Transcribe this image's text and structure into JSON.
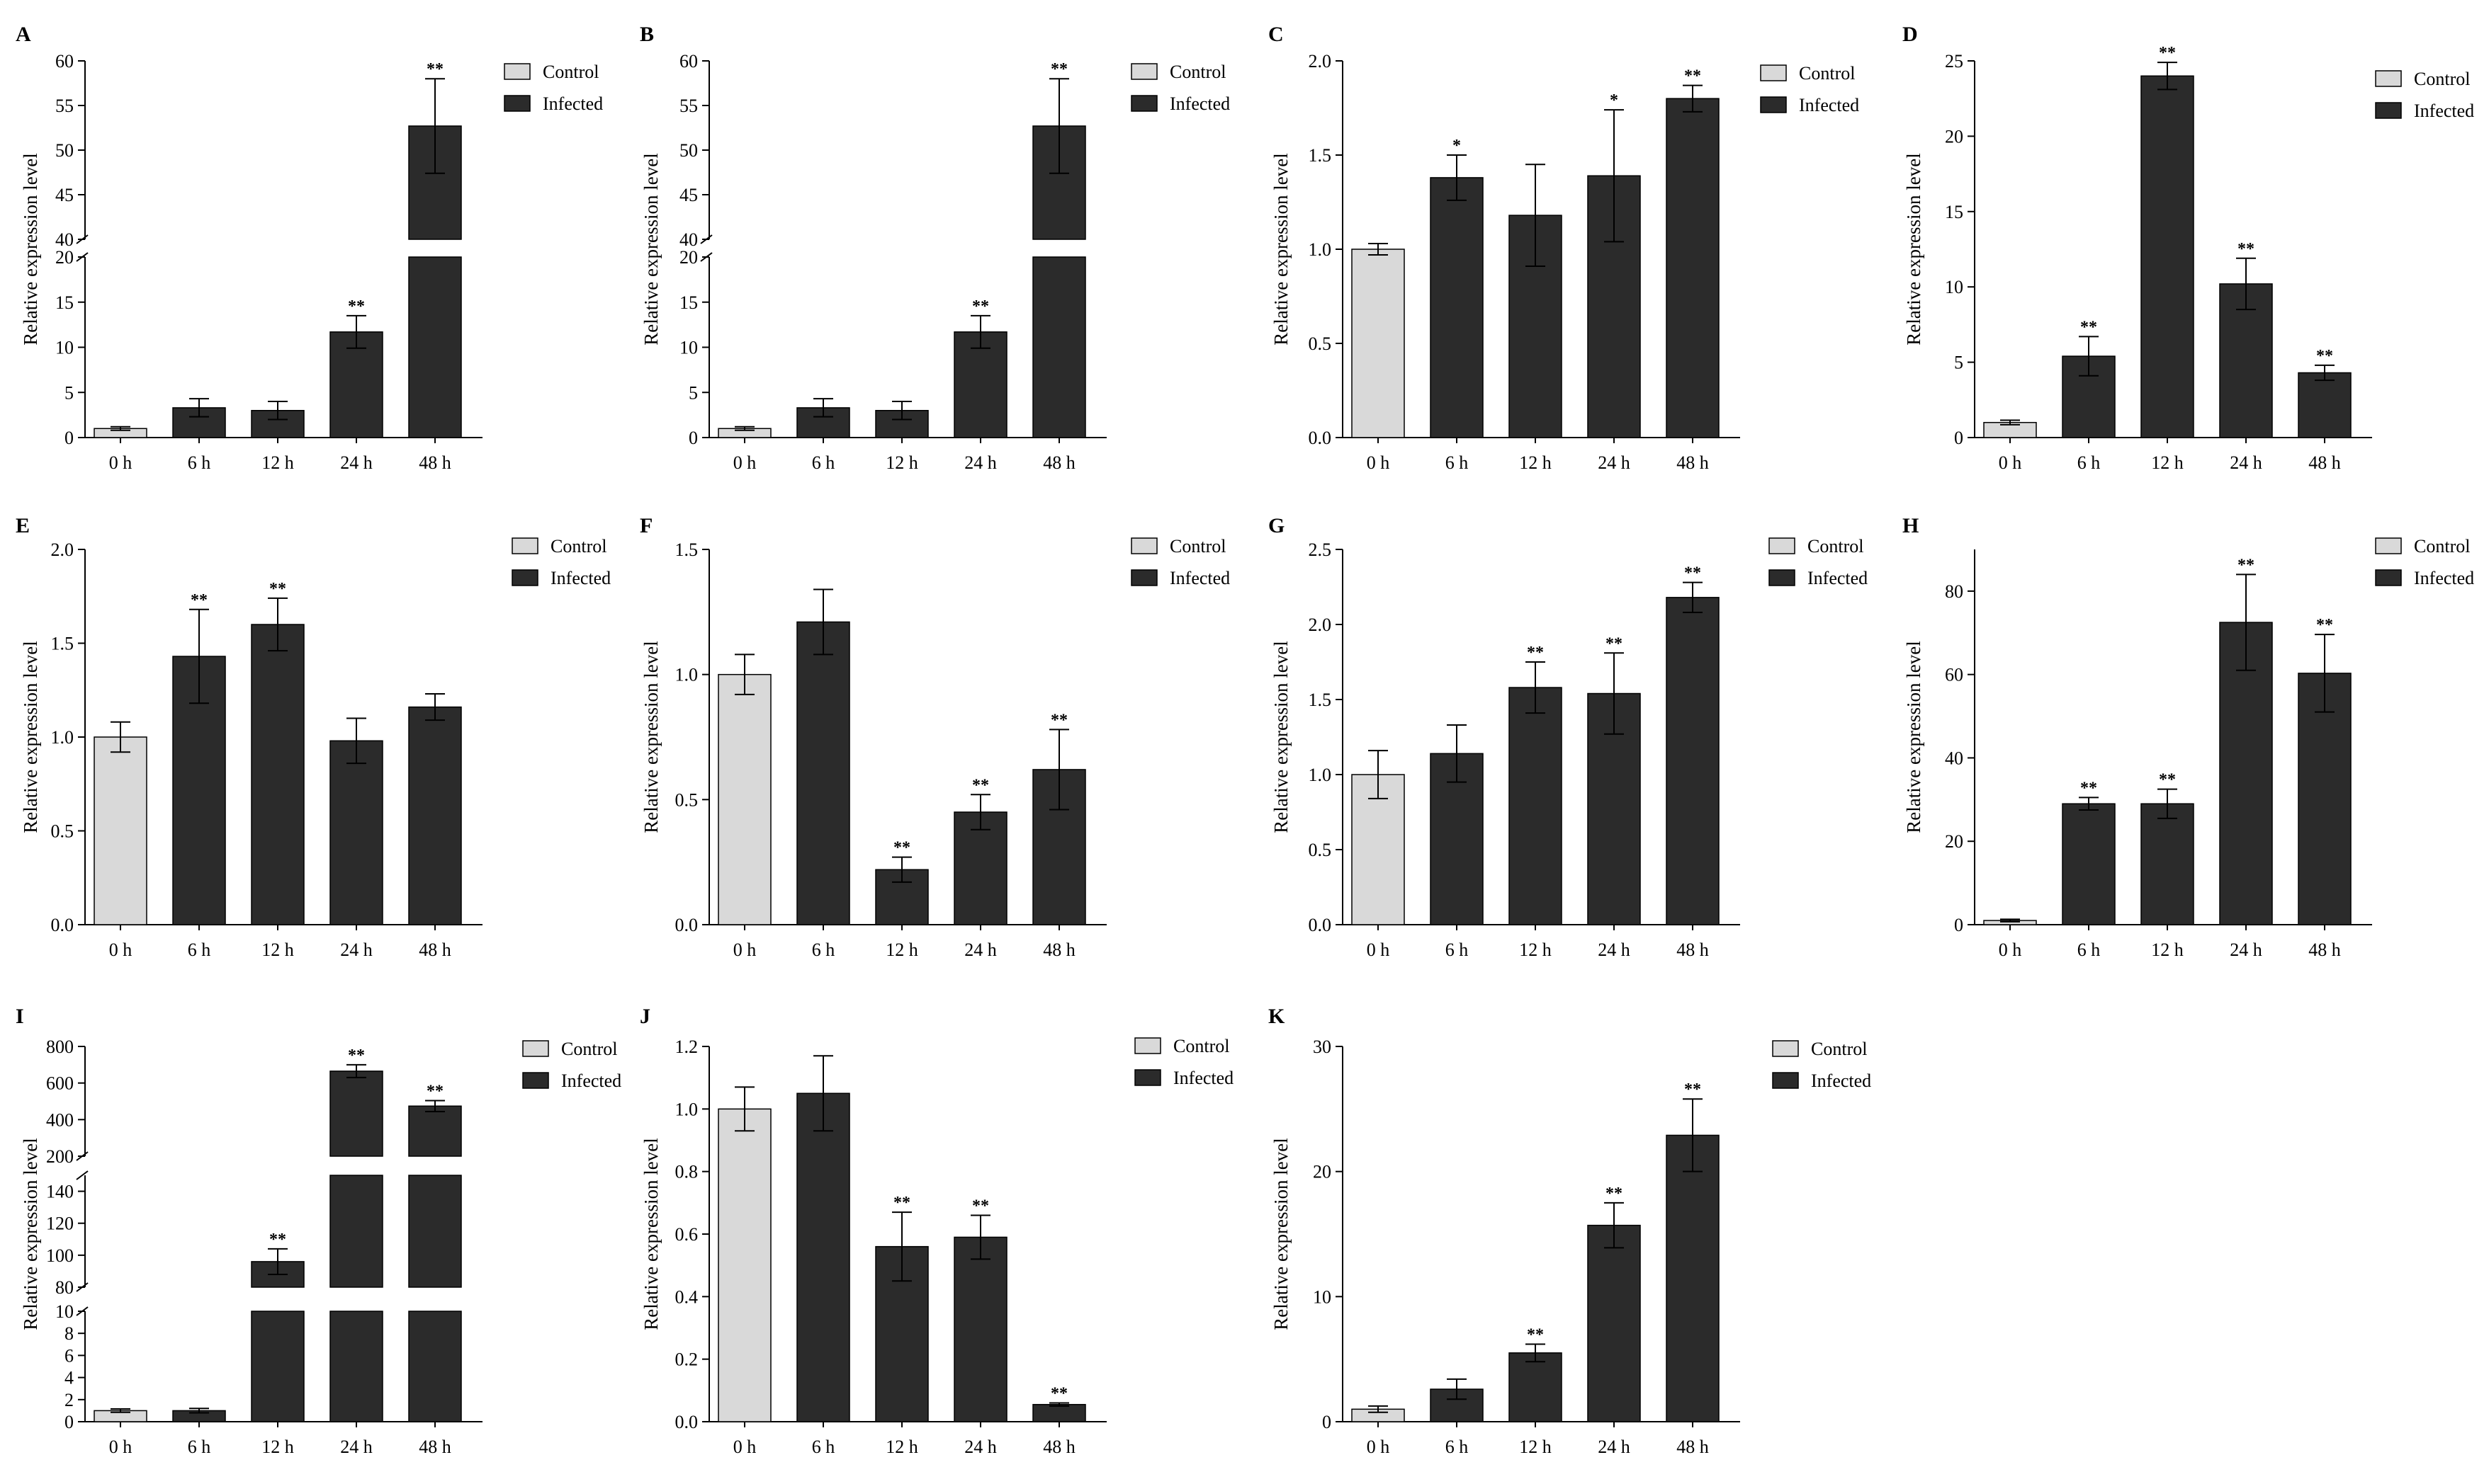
{
  "colors": {
    "control": "#d9d9d9",
    "infected": "#2b2b2b",
    "axis": "#000000"
  },
  "chart_data": [
    {
      "label": "A",
      "type": "bar",
      "categories": [
        "0 h",
        "6 h",
        "12 h",
        "24 h",
        "48 h"
      ],
      "values": [
        1.0,
        3.3,
        3.0,
        11.7,
        52.7
      ],
      "errors": [
        0.2,
        1.0,
        1.0,
        1.8,
        5.3
      ],
      "sig": [
        "",
        "",
        "",
        "**",
        "**"
      ],
      "groups": [
        "Control",
        "Infected",
        "Infected",
        "Infected",
        "Infected"
      ],
      "ylabel": "Relative expression level",
      "ysegments": [
        {
          "min": 0,
          "max": 20,
          "ticks": [
            0,
            5,
            10,
            15,
            20
          ]
        },
        {
          "min": 40,
          "max": 60,
          "ticks": [
            40,
            45,
            50,
            55,
            60
          ]
        }
      ],
      "legend": [
        "Control",
        "Infected"
      ]
    },
    {
      "label": "B",
      "type": "bar",
      "categories": [
        "0 h",
        "6 h",
        "12 h",
        "24 h",
        "48 h"
      ],
      "values": [
        1.0,
        3.3,
        3.0,
        11.7,
        52.7
      ],
      "errors": [
        0.2,
        1.0,
        1.0,
        1.8,
        5.3
      ],
      "sig": [
        "",
        "",
        "",
        "**",
        "**"
      ],
      "groups": [
        "Control",
        "Infected",
        "Infected",
        "Infected",
        "Infected"
      ],
      "ylabel": "Relative expression level",
      "ysegments": [
        {
          "min": 0,
          "max": 20,
          "ticks": [
            0,
            5,
            10,
            15,
            20
          ]
        },
        {
          "min": 40,
          "max": 60,
          "ticks": [
            40,
            45,
            50,
            55,
            60
          ]
        }
      ],
      "legend": [
        "Control",
        "Infected"
      ]
    },
    {
      "label": "C",
      "type": "bar",
      "categories": [
        "0 h",
        "6 h",
        "12 h",
        "24 h",
        "48 h"
      ],
      "values": [
        1.0,
        1.38,
        1.18,
        1.39,
        1.8
      ],
      "errors": [
        0.03,
        0.12,
        0.27,
        0.35,
        0.07
      ],
      "sig": [
        "",
        "*",
        "",
        "*",
        "**"
      ],
      "groups": [
        "Control",
        "Infected",
        "Infected",
        "Infected",
        "Infected"
      ],
      "ylabel": "Relative expression level",
      "ysegments": [
        {
          "min": 0,
          "max": 2.0,
          "ticks": [
            "0.0",
            "0.5",
            "1.0",
            "1.5",
            "2.0"
          ]
        }
      ],
      "legend": [
        "Control",
        "Infected"
      ]
    },
    {
      "label": "D",
      "type": "bar",
      "categories": [
        "0 h",
        "6 h",
        "12 h",
        "24 h",
        "48 h"
      ],
      "values": [
        1.0,
        5.4,
        24.0,
        10.2,
        4.3
      ],
      "errors": [
        0.15,
        1.3,
        0.9,
        1.7,
        0.5
      ],
      "sig": [
        "",
        "**",
        "**",
        "**",
        "**"
      ],
      "groups": [
        "Control",
        "Infected",
        "Infected",
        "Infected",
        "Infected"
      ],
      "ylabel": "Relative expression level",
      "ysegments": [
        {
          "min": 0,
          "max": 25,
          "ticks": [
            0,
            5,
            10,
            15,
            20,
            25
          ]
        }
      ],
      "legend": [
        "Control",
        "Infected"
      ]
    },
    {
      "label": "E",
      "type": "bar",
      "categories": [
        "0 h",
        "6 h",
        "12 h",
        "24 h",
        "48 h"
      ],
      "values": [
        1.0,
        1.43,
        1.6,
        0.98,
        1.16
      ],
      "errors": [
        0.08,
        0.25,
        0.14,
        0.12,
        0.07
      ],
      "sig": [
        "",
        "**",
        "**",
        "",
        ""
      ],
      "groups": [
        "Control",
        "Infected",
        "Infected",
        "Infected",
        "Infected"
      ],
      "ylabel": "Relative expression level",
      "ysegments": [
        {
          "min": 0,
          "max": 2.0,
          "ticks": [
            "0.0",
            "0.5",
            "1.0",
            "1.5",
            "2.0"
          ]
        }
      ],
      "legend": [
        "Control",
        "Infected"
      ]
    },
    {
      "label": "F",
      "type": "bar",
      "categories": [
        "0 h",
        "6 h",
        "12 h",
        "24 h",
        "48 h"
      ],
      "values": [
        1.0,
        1.21,
        0.22,
        0.45,
        0.62
      ],
      "errors": [
        0.08,
        0.13,
        0.05,
        0.07,
        0.16
      ],
      "sig": [
        "",
        "",
        "**",
        "**",
        "**"
      ],
      "groups": [
        "Control",
        "Infected",
        "Infected",
        "Infected",
        "Infected"
      ],
      "ylabel": "Relative expression level",
      "ysegments": [
        {
          "min": 0,
          "max": 1.5,
          "ticks": [
            "0.0",
            "0.5",
            "1.0",
            "1.5"
          ]
        }
      ],
      "legend": [
        "Control",
        "Infected"
      ]
    },
    {
      "label": "G",
      "type": "bar",
      "categories": [
        "0 h",
        "6 h",
        "12 h",
        "24 h",
        "48 h"
      ],
      "values": [
        1.0,
        1.14,
        1.58,
        1.54,
        2.18
      ],
      "errors": [
        0.16,
        0.19,
        0.17,
        0.27,
        0.1
      ],
      "sig": [
        "",
        "",
        "**",
        "**",
        "**"
      ],
      "groups": [
        "Control",
        "Infected",
        "Infected",
        "Infected",
        "Infected"
      ],
      "ylabel": "Relative expression level",
      "ysegments": [
        {
          "min": 0,
          "max": 2.5,
          "ticks": [
            "0.0",
            "0.5",
            "1.0",
            "1.5",
            "2.0",
            "2.5"
          ]
        }
      ],
      "legend": [
        "Control",
        "Infected"
      ]
    },
    {
      "label": "H",
      "type": "bar",
      "categories": [
        "0 h",
        "6 h",
        "12 h",
        "24 h",
        "48 h"
      ],
      "values": [
        1.0,
        29.0,
        29.0,
        72.5,
        60.3
      ],
      "errors": [
        0.3,
        1.5,
        3.5,
        11.5,
        9.3
      ],
      "sig": [
        "",
        "**",
        "**",
        "**",
        "**"
      ],
      "groups": [
        "Control",
        "Infected",
        "Infected",
        "Infected",
        "Infected"
      ],
      "ylabel": "Relative expression level",
      "ysegments": [
        {
          "min": 0,
          "max": 90,
          "ticks": [
            0,
            20,
            40,
            60,
            80
          ]
        }
      ],
      "legend": [
        "Control",
        "Infected"
      ]
    },
    {
      "label": "I",
      "type": "bar",
      "categories": [
        "0 h",
        "6 h",
        "12 h",
        "24 h",
        "48 h"
      ],
      "values": [
        1.0,
        1.0,
        96,
        665,
        474
      ],
      "errors": [
        0.15,
        0.2,
        8,
        35,
        30
      ],
      "sig": [
        "",
        "",
        "**",
        "**",
        "**"
      ],
      "groups": [
        "Control",
        "Infected",
        "Infected",
        "Infected",
        "Infected"
      ],
      "ylabel": "Relative expression level",
      "ysegments": [
        {
          "min": 0,
          "max": 10,
          "ticks": [
            0,
            2,
            4,
            6,
            8,
            10
          ]
        },
        {
          "min": 80,
          "max": 150,
          "ticks": [
            80,
            100,
            120,
            140
          ]
        },
        {
          "min": 200,
          "max": 800,
          "ticks": [
            200,
            400,
            600,
            800
          ]
        }
      ],
      "legend": [
        "Control",
        "Infected"
      ]
    },
    {
      "label": "J",
      "type": "bar",
      "categories": [
        "0 h",
        "6 h",
        "12 h",
        "24 h",
        "48 h"
      ],
      "values": [
        1.0,
        1.05,
        0.56,
        0.59,
        0.055
      ],
      "errors": [
        0.07,
        0.12,
        0.11,
        0.07,
        0.005
      ],
      "sig": [
        "",
        "",
        "**",
        "**",
        "**"
      ],
      "groups": [
        "Control",
        "Infected",
        "Infected",
        "Infected",
        "Infected"
      ],
      "ylabel": "Relative expression level",
      "ysegments": [
        {
          "min": 0,
          "max": 1.2,
          "ticks": [
            "0.0",
            "0.2",
            "0.4",
            "0.6",
            "0.8",
            "1.0",
            "1.2"
          ]
        }
      ],
      "legend": [
        "Control",
        "Infected"
      ]
    },
    {
      "label": "K",
      "type": "bar",
      "categories": [
        "0 h",
        "6 h",
        "12 h",
        "24 h",
        "48 h"
      ],
      "values": [
        1.0,
        2.6,
        5.5,
        15.7,
        22.9
      ],
      "errors": [
        0.25,
        0.8,
        0.7,
        1.8,
        2.9
      ],
      "sig": [
        "",
        "",
        "**",
        "**",
        "**"
      ],
      "groups": [
        "Control",
        "Infected",
        "Infected",
        "Infected",
        "Infected"
      ],
      "ylabel": "Relative expression level",
      "ysegments": [
        {
          "min": 0,
          "max": 30,
          "ticks": [
            0,
            10,
            20,
            30
          ]
        }
      ],
      "legend": [
        "Control",
        "Infected"
      ]
    }
  ]
}
